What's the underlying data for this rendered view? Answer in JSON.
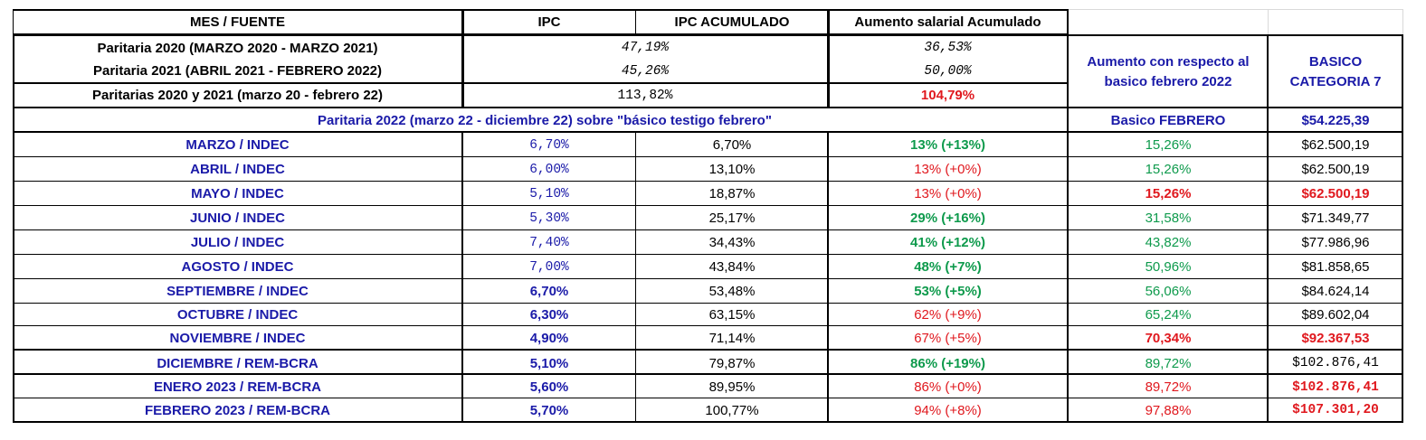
{
  "header": {
    "mes_fuente": "MES / FUENTE",
    "ipc": "IPC",
    "ipc_acumulado": "IPC ACUMULADO",
    "aumento_salarial": "Aumento salarial Acumulado",
    "aumento_respecto": "Aumento con respecto al basico febrero 2022",
    "basico_categoria": "BASICO CATEGORIA 7"
  },
  "paritarias": [
    {
      "label": "Paritaria 2020 (MARZO 2020 - MARZO 2021)",
      "ipc": "47,19%",
      "aumento": "36,53%"
    },
    {
      "label": "Paritaria 2021 (ABRIL 2021 - FEBRERO 2022)",
      "ipc": "45,26%",
      "aumento": "50,00%"
    }
  ],
  "total": {
    "label": "Paritarias 2020 y 2021 (marzo 20 - febrero 22)",
    "ipc": "113,82%",
    "aumento": "104,79%"
  },
  "section": {
    "label": "Paritaria 2022 (marzo 22 - diciembre 22) sobre \"básico testigo febrero\"",
    "basico_label": "Basico FEBRERO",
    "basico_value": "$54.225,39"
  },
  "rows": [
    {
      "mes": "MARZO / INDEC",
      "ipc": "6,70%",
      "acum": "6,70%",
      "aumento": "13% (+13%)",
      "respecto": "15,26%",
      "basico": "$62.500,19"
    },
    {
      "mes": "ABRIL / INDEC",
      "ipc": "6,00%",
      "acum": "13,10%",
      "aumento": "13% (+0%)",
      "respecto": "15,26%",
      "basico": "$62.500,19"
    },
    {
      "mes": "MAYO / INDEC",
      "ipc": "5,10%",
      "acum": "18,87%",
      "aumento": "13% (+0%)",
      "respecto": "15,26%",
      "basico": "$62.500,19"
    },
    {
      "mes": "JUNIO / INDEC",
      "ipc": "5,30%",
      "acum": "25,17%",
      "aumento": "29% (+16%)",
      "respecto": "31,58%",
      "basico": "$71.349,77"
    },
    {
      "mes": "JULIO / INDEC",
      "ipc": "7,40%",
      "acum": "34,43%",
      "aumento": "41% (+12%)",
      "respecto": "43,82%",
      "basico": "$77.986,96"
    },
    {
      "mes": "AGOSTO / INDEC",
      "ipc": "7,00%",
      "acum": "43,84%",
      "aumento": "48% (+7%)",
      "respecto": "50,96%",
      "basico": "$81.858,65"
    },
    {
      "mes": "SEPTIEMBRE / INDEC",
      "ipc": "6,70%",
      "acum": "53,48%",
      "aumento": "53% (+5%)",
      "respecto": "56,06%",
      "basico": "$84.624,14"
    },
    {
      "mes": "OCTUBRE /  INDEC",
      "ipc": "6,30%",
      "acum": "63,15%",
      "aumento": "62% (+9%)",
      "respecto": "65,24%",
      "basico": "$89.602,04"
    },
    {
      "mes": "NOVIEMBRE / INDEC",
      "ipc": "4,90%",
      "acum": "71,14%",
      "aumento": "67% (+5%)",
      "respecto": "70,34%",
      "basico": "$92.367,53"
    },
    {
      "mes": "DICIEMBRE / REM-BCRA",
      "ipc": "5,10%",
      "acum": "79,87%",
      "aumento": "86% (+19%)",
      "respecto": "89,72%",
      "basico": "$102.876,41"
    },
    {
      "mes": "ENERO 2023 / REM-BCRA",
      "ipc": "5,60%",
      "acum": "89,95%",
      "aumento": "86% (+0%)",
      "respecto": "89,72%",
      "basico": "$102.876,41"
    },
    {
      "mes": "FEBRERO 2023 / REM-BCRA",
      "ipc": "5,70%",
      "acum": "100,77%",
      "aumento": "94% (+8%)",
      "respecto": "97,88%",
      "basico": "$107.301,20"
    }
  ],
  "colors": {
    "blue": "#1a1aa8",
    "green": "#0e9a4c",
    "red": "#e0181e"
  }
}
